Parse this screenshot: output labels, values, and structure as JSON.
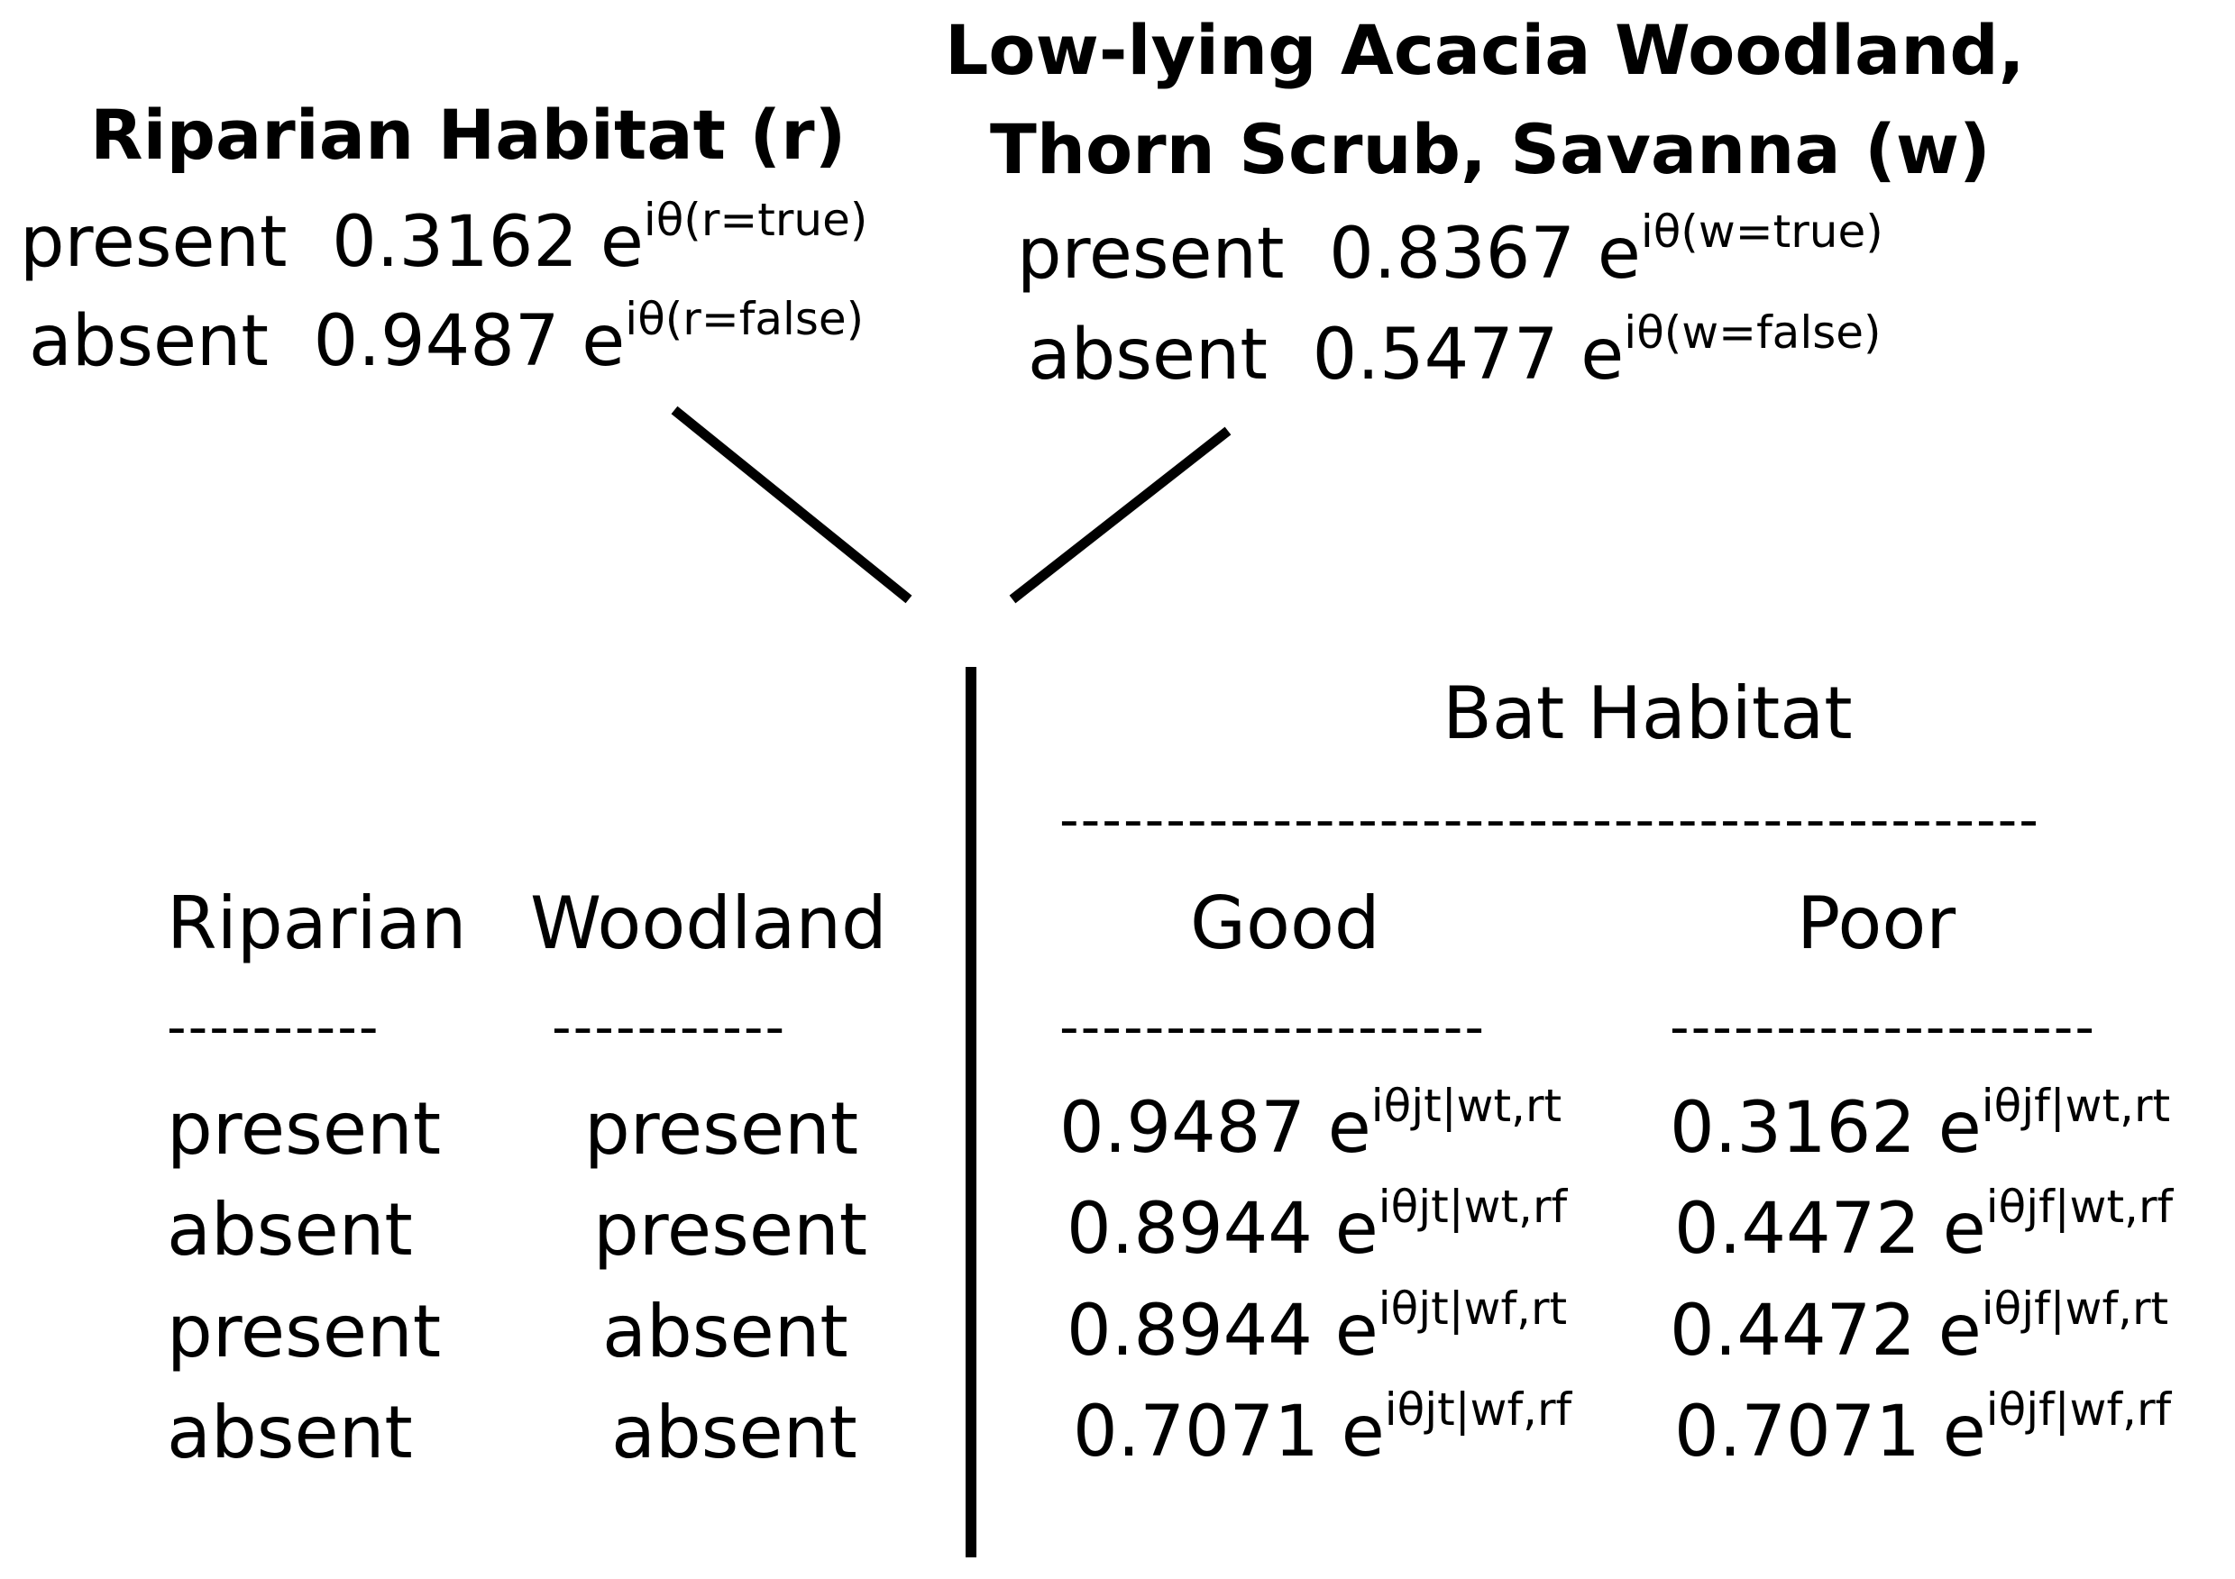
{
  "riparian_node": {
    "title": "Riparian Habitat (r)",
    "rows": [
      {
        "state": "present",
        "value": "0.3162",
        "exp_base": "e",
        "exp": "iθ(r=true)"
      },
      {
        "state": "absent",
        "value": "0.9487",
        "exp_base": "e",
        "exp": "iθ(r=false)"
      }
    ]
  },
  "woodland_node": {
    "title_line1": "Low-lying Acacia Woodland,",
    "title_line2": "Thorn Scrub, Savanna (w)",
    "rows": [
      {
        "state": "present",
        "value": "0.8367",
        "exp_base": "e",
        "exp": "iθ(w=true)"
      },
      {
        "state": "absent",
        "value": "0.5477",
        "exp_base": "e",
        "exp": "iθ(w=false)"
      }
    ]
  },
  "table": {
    "header": "Bat Habitat",
    "parent_columns": [
      "Riparian",
      "Woodland"
    ],
    "child_columns": [
      "Good",
      "Poor"
    ],
    "dash_long": "----------------------------------------------",
    "dash_col_a": "----------",
    "dash_col_b": "-----------",
    "dash_col_c": "--------------------",
    "dash_col_d": "--------------------",
    "rows": [
      {
        "riparian": "present",
        "woodland": "present",
        "good_value": "0.9487",
        "good_exp": "iθjt|wt,rt",
        "poor_value": "0.3162",
        "poor_exp": "iθjf|wt,rt"
      },
      {
        "riparian": "absent",
        "woodland": "present",
        "good_value": "0.8944",
        "good_exp": "iθjt|wt,rf",
        "poor_value": "0.4472",
        "poor_exp": "iθjf|wt,rf"
      },
      {
        "riparian": "present",
        "woodland": "absent",
        "good_value": "0.8944",
        "good_exp": "iθjt|wf,rt",
        "poor_value": "0.4472",
        "poor_exp": "iθjf|wf,rt"
      },
      {
        "riparian": "absent",
        "woodland": "absent",
        "good_value": "0.7071",
        "good_exp": "iθjt|wf,rf",
        "poor_value": "0.7071",
        "poor_exp": "iθjf|wf,rf"
      }
    ],
    "exp_base": "e"
  },
  "colors": {
    "text": "#000000",
    "lines": "#000000",
    "background": "#ffffff"
  }
}
